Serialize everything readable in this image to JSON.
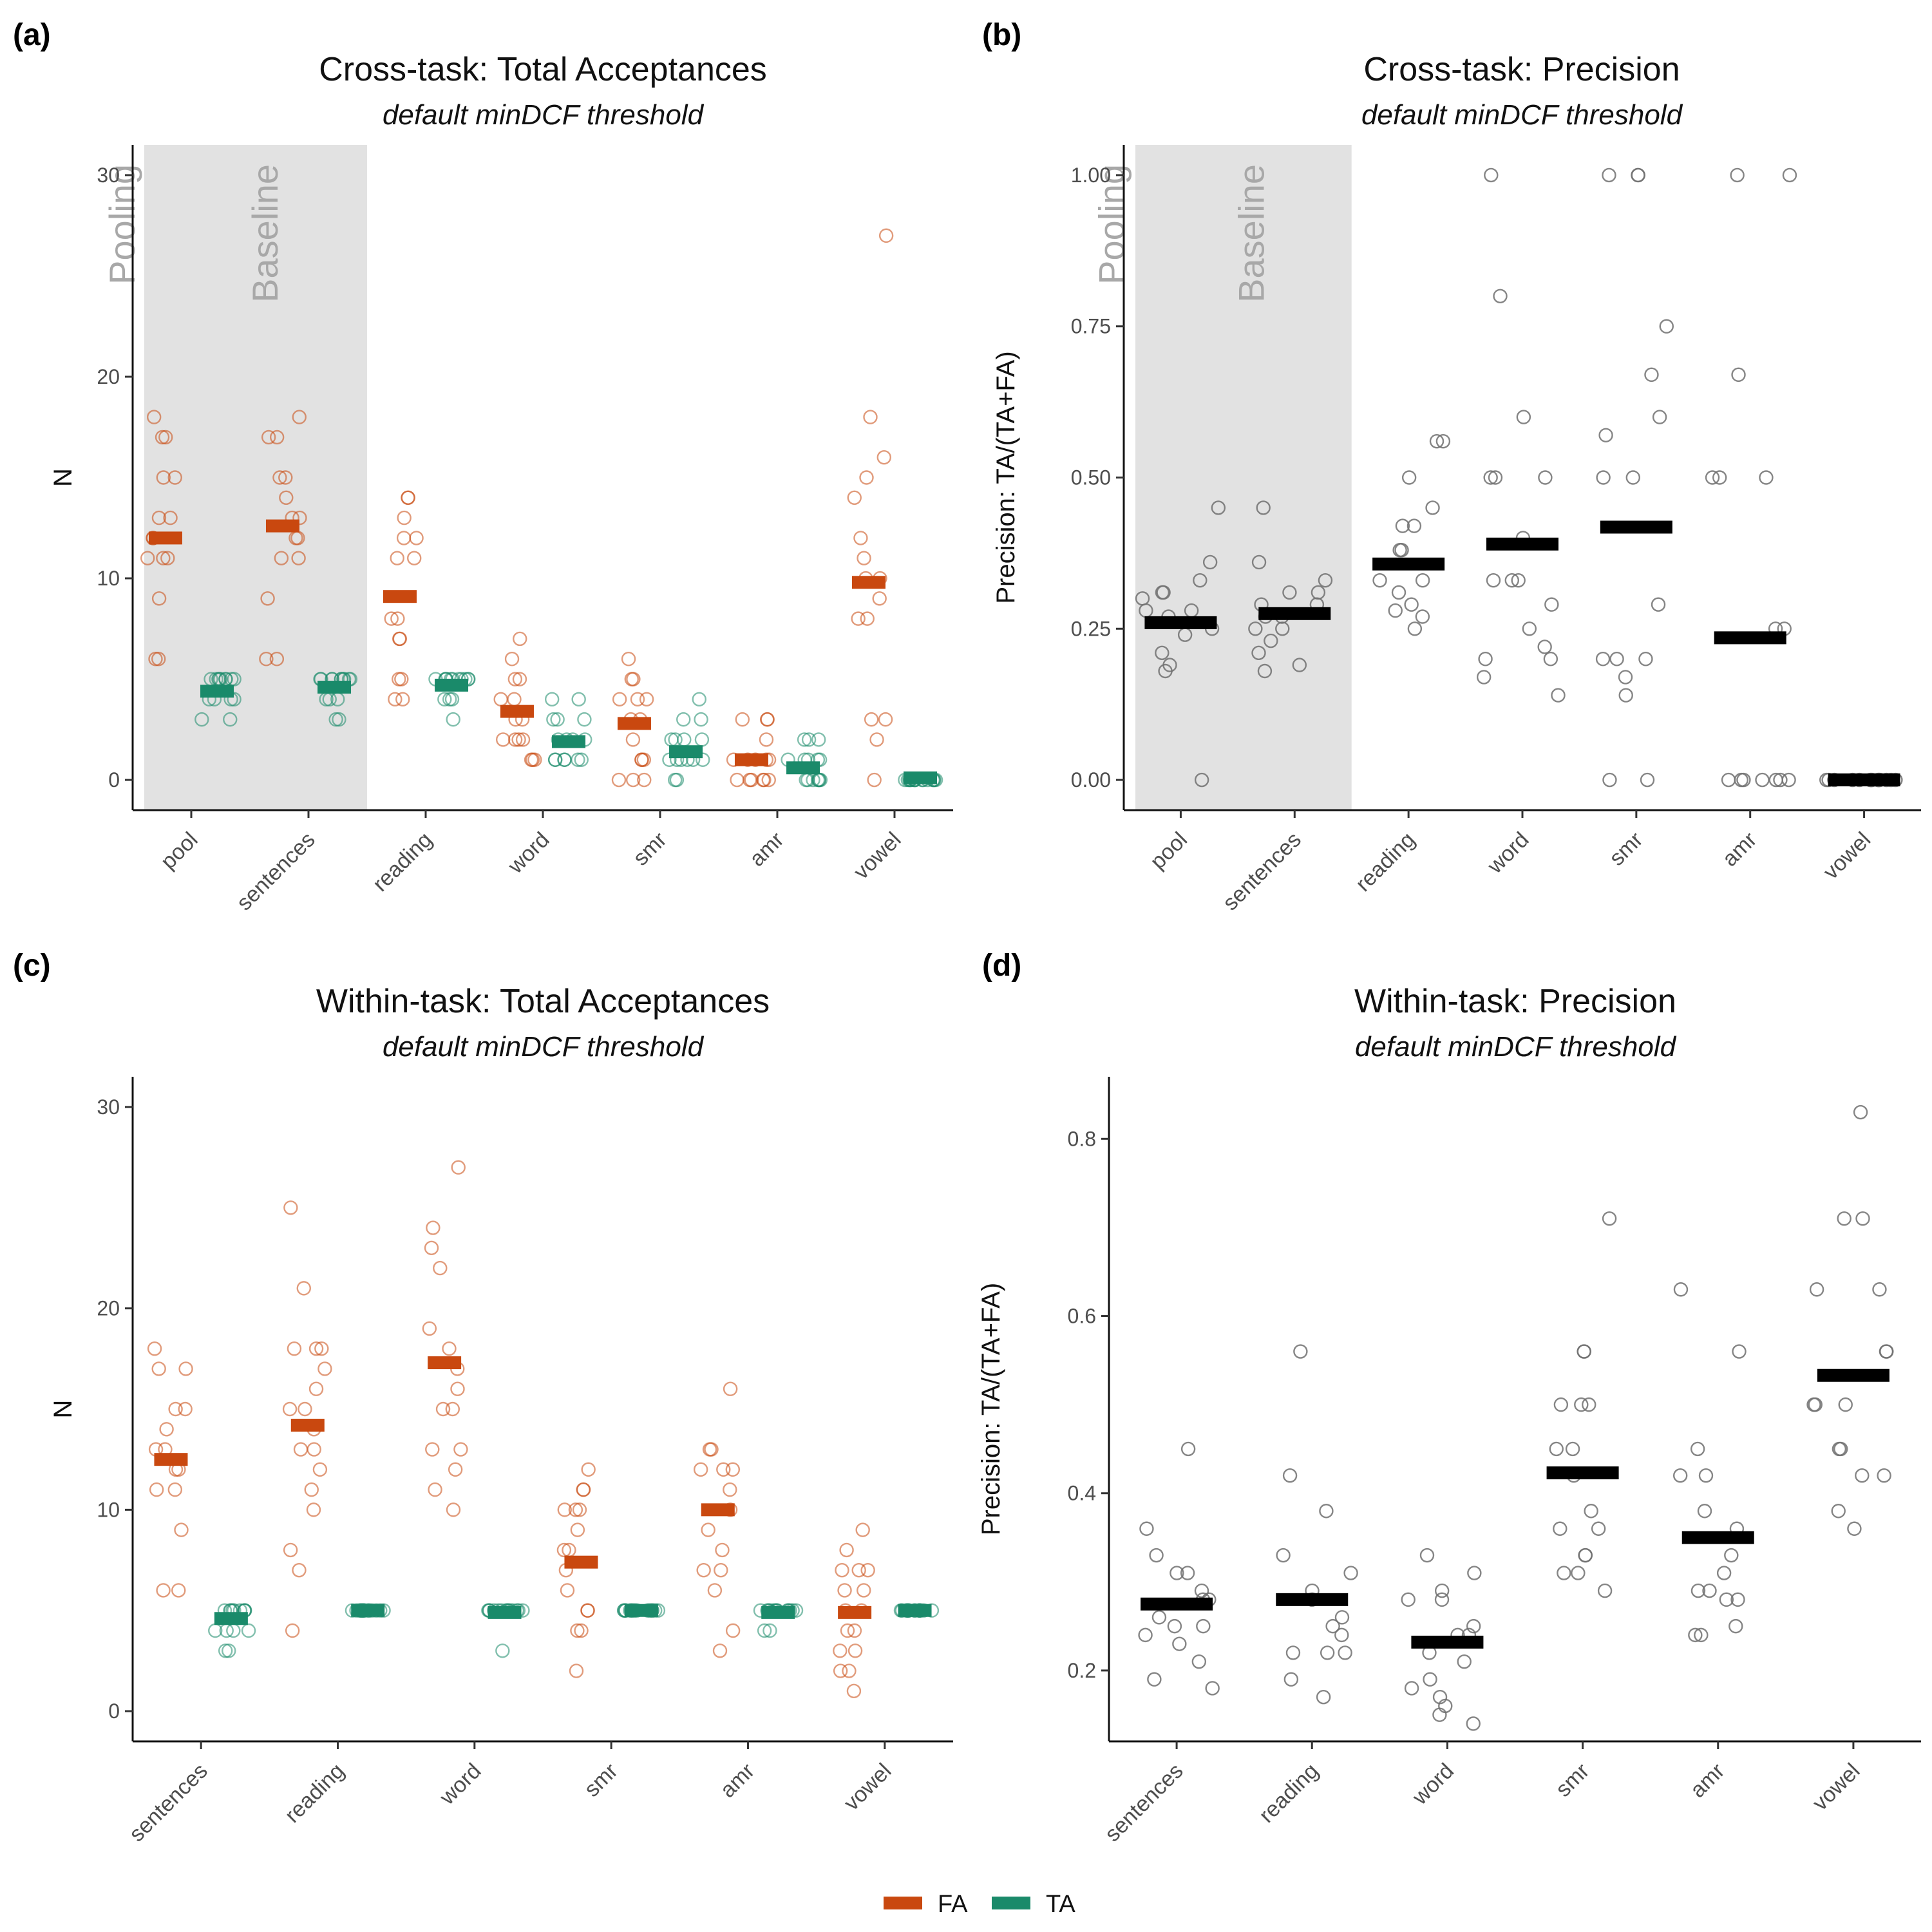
{
  "colors": {
    "FA": "#c9480f",
    "TA": "#1a8a6a",
    "precision": "#707070",
    "shade": "#e2e2e2"
  },
  "legend": [
    {
      "key": "FA",
      "label": "FA"
    },
    {
      "key": "TA",
      "label": "TA"
    }
  ],
  "chart_data": [
    {
      "id": "a",
      "letter": "(a)",
      "type": "scatter",
      "title": "Cross-task: Total Acceptances",
      "subtitle": "default minDCF threshold",
      "ylabel": "N",
      "ylim": [
        -1.5,
        31.5
      ],
      "yticks": [
        0,
        10,
        20,
        30
      ],
      "categories": [
        "pool",
        "sentences",
        "reading",
        "word",
        "smr",
        "amr",
        "vowel"
      ],
      "shaded": {
        "from": 0,
        "to": 1,
        "labels": [
          "Pooling",
          "Baseline"
        ]
      },
      "series": [
        {
          "name": "FA",
          "means": [
            12.0,
            12.6,
            9.1,
            3.4,
            2.8,
            1.0,
            9.8
          ],
          "points": [
            [
              18,
              17,
              17,
              15,
              15,
              13,
              13,
              12,
              12,
              11,
              11,
              11,
              9,
              6,
              6
            ],
            [
              18,
              17,
              17,
              15,
              15,
              14,
              13,
              13,
              12,
              12,
              11,
              11,
              9,
              6,
              6
            ],
            [
              14,
              14,
              13,
              12,
              12,
              11,
              11,
              8,
              8,
              7,
              7,
              5,
              5,
              4,
              4
            ],
            [
              7,
              6,
              5,
              5,
              4,
              4,
              3,
              3,
              2,
              2,
              2,
              2,
              1,
              1,
              1
            ],
            [
              6,
              5,
              5,
              4,
              4,
              4,
              3,
              3,
              2,
              1,
              1,
              1,
              0,
              0,
              0
            ],
            [
              3,
              3,
              3,
              2,
              1,
              1,
              1,
              1,
              0,
              0,
              0,
              0,
              1,
              0,
              0
            ],
            [
              27,
              18,
              16,
              15,
              14,
              12,
              11,
              10,
              10,
              9,
              8,
              8,
              3,
              3,
              2,
              0
            ]
          ]
        },
        {
          "name": "TA",
          "means": [
            4.4,
            4.6,
            4.7,
            1.9,
            1.4,
            0.6,
            0.1
          ],
          "points": [
            [
              5,
              5,
              5,
              5,
              5,
              5,
              5,
              5,
              4,
              4,
              4,
              4,
              3,
              3,
              5
            ],
            [
              5,
              5,
              5,
              5,
              5,
              5,
              5,
              5,
              5,
              4,
              4,
              4,
              3,
              3,
              5
            ],
            [
              5,
              5,
              5,
              5,
              5,
              5,
              5,
              5,
              5,
              5,
              4,
              4,
              4,
              3,
              5
            ],
            [
              4,
              4,
              3,
              3,
              3,
              2,
              2,
              2,
              2,
              1,
              1,
              1,
              1,
              1,
              1
            ],
            [
              4,
              3,
              3,
              2,
              2,
              2,
              2,
              1,
              1,
              1,
              1,
              1,
              0,
              0,
              1
            ],
            [
              2,
              2,
              2,
              1,
              1,
              1,
              1,
              1,
              0,
              0,
              0,
              0,
              0,
              0,
              0
            ],
            [
              0,
              0,
              0,
              0,
              0,
              0,
              0,
              0,
              0,
              0,
              0,
              0,
              0,
              0,
              0
            ]
          ]
        }
      ]
    },
    {
      "id": "b",
      "letter": "(b)",
      "type": "scatter",
      "title": "Cross-task: Precision",
      "subtitle": "default minDCF threshold",
      "ylabel": "Precision: TA/(TA+FA)",
      "ylim": [
        -0.05,
        1.05
      ],
      "yticks": [
        0,
        0.25,
        0.5,
        0.75,
        1.0
      ],
      "ytick_labels": [
        "0.00",
        "0.25",
        "0.50",
        "0.75",
        "1.00"
      ],
      "categories": [
        "pool",
        "sentences",
        "reading",
        "word",
        "smr",
        "amr",
        "vowel"
      ],
      "shaded": {
        "from": 0,
        "to": 1,
        "labels": [
          "Pooling",
          "Baseline"
        ]
      },
      "series": [
        {
          "name": "precision",
          "means": [
            0.26,
            0.275,
            0.357,
            0.39,
            0.418,
            0.235,
            0.0
          ],
          "points": [
            [
              0.31,
              0.36,
              0.28,
              0.28,
              0.27,
              0.25,
              0.24,
              0.21,
              0.19,
              0.18,
              0.31,
              0.33,
              0.3,
              0.45,
              0.0
            ],
            [
              0.45,
              0.33,
              0.31,
              0.31,
              0.29,
              0.27,
              0.25,
              0.25,
              0.23,
              0.21,
              0.19,
              0.18,
              0.27,
              0.36,
              0.29
            ],
            [
              0.56,
              0.56,
              0.5,
              0.45,
              0.42,
              0.42,
              0.38,
              0.38,
              0.33,
              0.33,
              0.31,
              0.29,
              0.28,
              0.27,
              0.25
            ],
            [
              1.0,
              0.8,
              0.6,
              0.5,
              0.5,
              0.5,
              0.4,
              0.33,
              0.33,
              0.33,
              0.29,
              0.25,
              0.22,
              0.2,
              0.2,
              0.17,
              0.14
            ],
            [
              1.0,
              1.0,
              1.0,
              0.75,
              0.67,
              0.6,
              0.57,
              0.5,
              0.5,
              0.29,
              0.2,
              0.2,
              0.2,
              0.17,
              0.14,
              0.0,
              0.0
            ],
            [
              1.0,
              1.0,
              0.67,
              0.5,
              0.5,
              0.5,
              0.25,
              0.25,
              0.0,
              0.0,
              0.0,
              0.0,
              0.0,
              0.0,
              0.0
            ],
            [
              0.0,
              0.0,
              0.0,
              0.0,
              0.0,
              0.0,
              0.0,
              0.0,
              0.0,
              0.0,
              0.0,
              0.0,
              0.0,
              0.0,
              0.0
            ]
          ]
        }
      ]
    },
    {
      "id": "c",
      "letter": "(c)",
      "type": "scatter",
      "title": "Within-task: Total Acceptances",
      "subtitle": "default minDCF threshold",
      "ylabel": "N",
      "ylim": [
        -1.5,
        31.5
      ],
      "yticks": [
        0,
        10,
        20,
        30
      ],
      "categories": [
        "sentences",
        "reading",
        "word",
        "smr",
        "amr",
        "vowel"
      ],
      "series": [
        {
          "name": "FA",
          "means": [
            12.5,
            14.2,
            17.3,
            7.4,
            10.0,
            4.9
          ],
          "points": [
            [
              18,
              17,
              17,
              15,
              15,
              14,
              13,
              13,
              12,
              12,
              11,
              11,
              9,
              6,
              6
            ],
            [
              25,
              21,
              18,
              18,
              18,
              17,
              16,
              15,
              15,
              14,
              13,
              13,
              12,
              11,
              10,
              8,
              7,
              4
            ],
            [
              27,
              24,
              23,
              22,
              19,
              18,
              17,
              16,
              15,
              15,
              13,
              13,
              12,
              11,
              10
            ],
            [
              12,
              11,
              11,
              10,
              10,
              10,
              9,
              8,
              8,
              7,
              6,
              5,
              5,
              4,
              4,
              2
            ],
            [
              16,
              13,
              13,
              12,
              12,
              12,
              11,
              10,
              9,
              8,
              7,
              7,
              6,
              4,
              3
            ],
            [
              9,
              8,
              7,
              7,
              7,
              6,
              6,
              5,
              5,
              4,
              4,
              3,
              3,
              2,
              2,
              1
            ]
          ]
        },
        {
          "name": "TA",
          "means": [
            4.6,
            5.0,
            4.9,
            5.0,
            4.9,
            5.0
          ],
          "points": [
            [
              5,
              5,
              5,
              5,
              5,
              5,
              5,
              5,
              4,
              4,
              4,
              4,
              3,
              3,
              5
            ],
            [
              5,
              5,
              5,
              5,
              5,
              5,
              5,
              5,
              5,
              5,
              5,
              5,
              5,
              5,
              5
            ],
            [
              5,
              5,
              5,
              5,
              5,
              5,
              5,
              5,
              5,
              5,
              5,
              5,
              5,
              5,
              3
            ],
            [
              5,
              5,
              5,
              5,
              5,
              5,
              5,
              5,
              5,
              5,
              5,
              5,
              5,
              5,
              5
            ],
            [
              5,
              5,
              5,
              5,
              5,
              5,
              5,
              5,
              5,
              5,
              5,
              5,
              4,
              4,
              5
            ],
            [
              5,
              5,
              5,
              5,
              5,
              5,
              5,
              5,
              5,
              5,
              5,
              5,
              5,
              5,
              5
            ]
          ]
        }
      ]
    },
    {
      "id": "d",
      "letter": "(d)",
      "type": "scatter",
      "title": "Within-task: Precision",
      "subtitle": "default minDCF threshold",
      "ylabel": "Precision: TA/(TA+FA)",
      "ylim": [
        0.12,
        0.87
      ],
      "yticks": [
        0.2,
        0.4,
        0.6,
        0.8
      ],
      "ytick_labels": [
        "0.2",
        "0.4",
        "0.6",
        "0.8"
      ],
      "categories": [
        "sentences",
        "reading",
        "word",
        "smr",
        "amr",
        "vowel"
      ],
      "series": [
        {
          "name": "precision",
          "means": [
            0.275,
            0.28,
            0.232,
            0.423,
            0.35,
            0.533
          ],
          "points": [
            [
              0.45,
              0.36,
              0.33,
              0.31,
              0.31,
              0.29,
              0.28,
              0.28,
              0.26,
              0.25,
              0.24,
              0.23,
              0.21,
              0.19,
              0.18,
              0.25
            ],
            [
              0.56,
              0.42,
              0.38,
              0.33,
              0.31,
              0.29,
              0.28,
              0.26,
              0.25,
              0.24,
              0.22,
              0.22,
              0.22,
              0.19,
              0.17
            ],
            [
              0.33,
              0.31,
              0.29,
              0.28,
              0.28,
              0.25,
              0.24,
              0.24,
              0.22,
              0.21,
              0.19,
              0.18,
              0.17,
              0.16,
              0.15,
              0.14
            ],
            [
              0.71,
              0.56,
              0.56,
              0.5,
              0.5,
              0.5,
              0.45,
              0.45,
              0.42,
              0.38,
              0.36,
              0.36,
              0.33,
              0.33,
              0.31,
              0.31,
              0.29
            ],
            [
              0.63,
              0.56,
              0.45,
              0.42,
              0.42,
              0.38,
              0.36,
              0.33,
              0.31,
              0.29,
              0.29,
              0.28,
              0.28,
              0.25,
              0.24,
              0.24
            ],
            [
              0.83,
              0.71,
              0.71,
              0.63,
              0.63,
              0.56,
              0.56,
              0.5,
              0.5,
              0.5,
              0.45,
              0.45,
              0.42,
              0.42,
              0.38,
              0.36
            ]
          ]
        }
      ]
    }
  ]
}
